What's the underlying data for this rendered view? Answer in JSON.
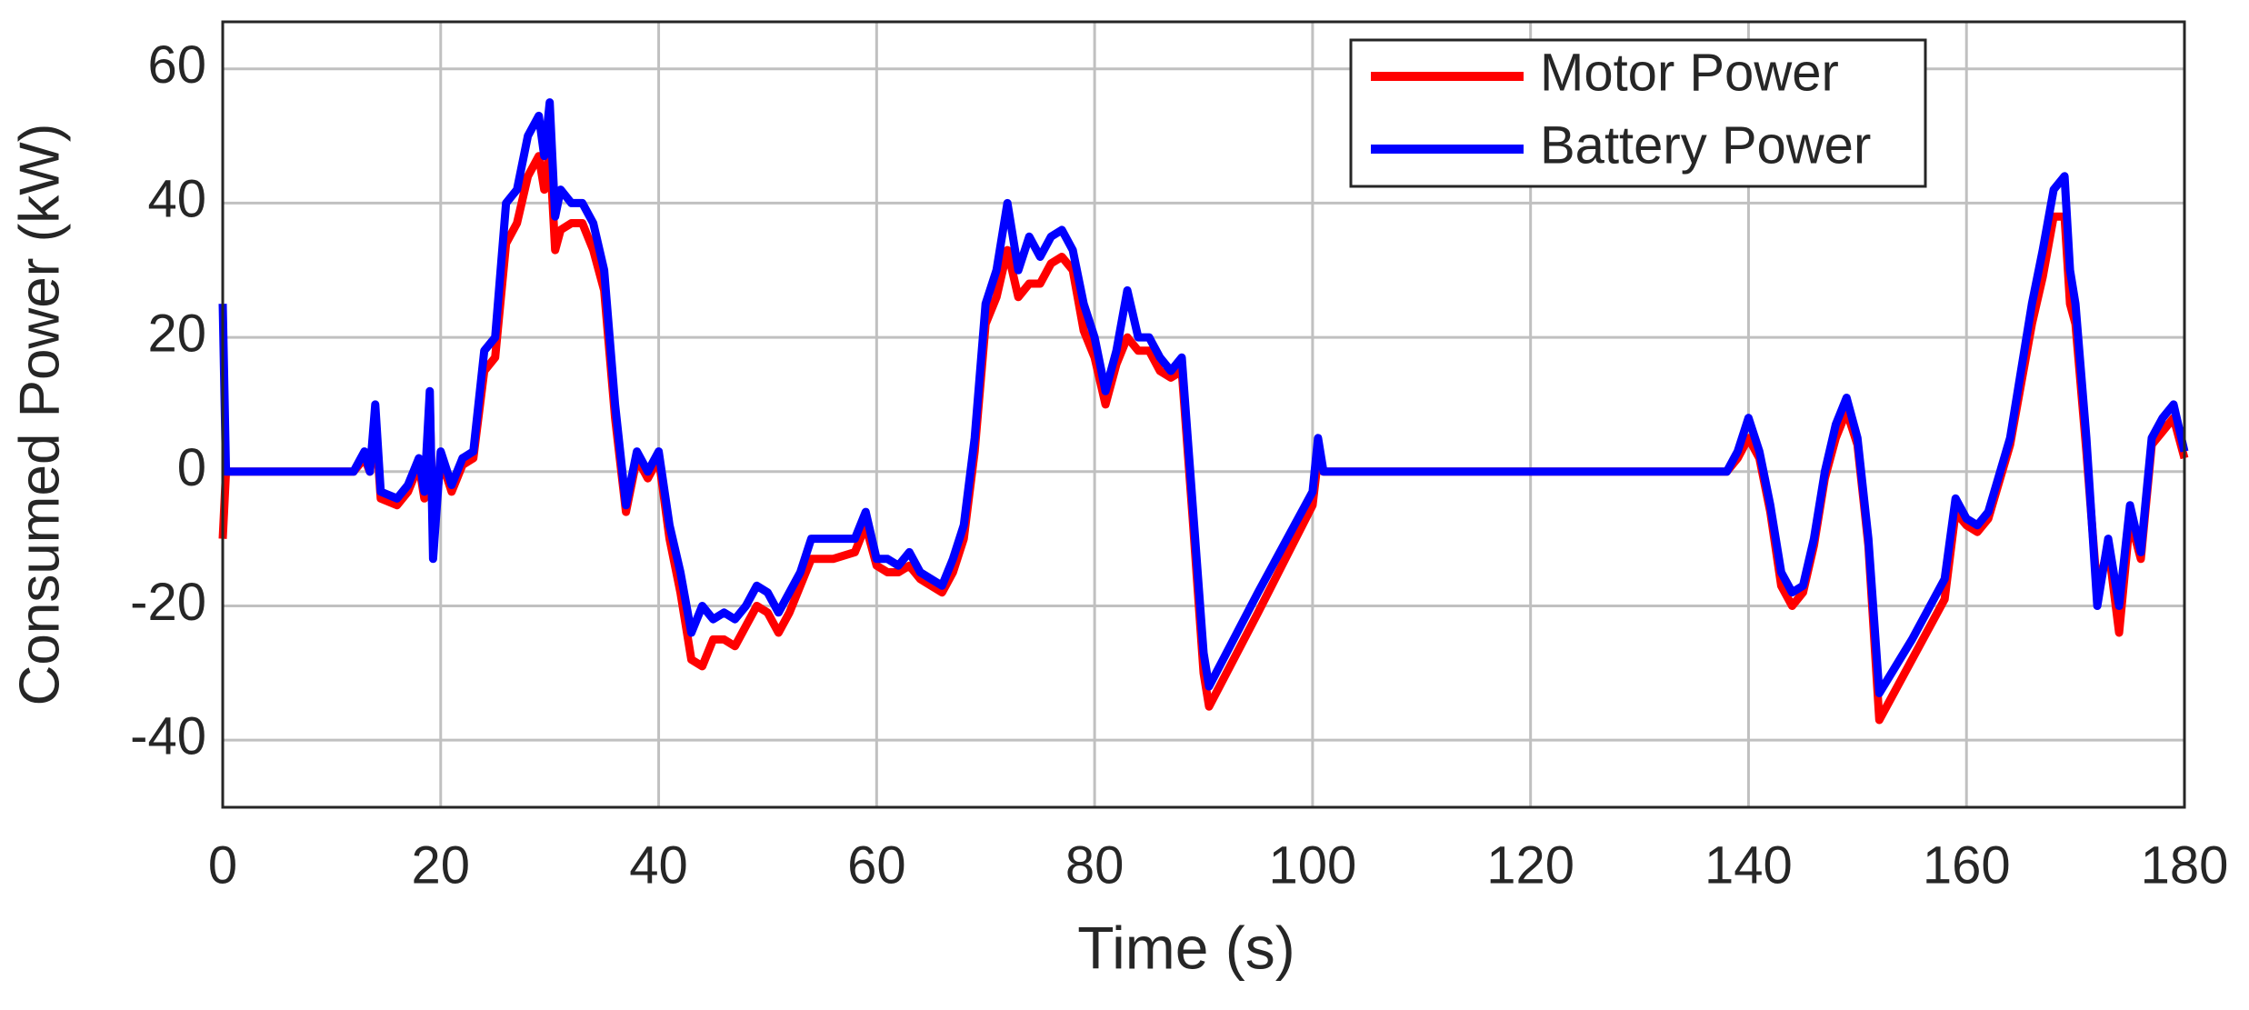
{
  "chart_data": {
    "type": "line",
    "xlabel": "Time (s)",
    "ylabel": "Consumed Power (kW)",
    "x": [
      0,
      0.3,
      12,
      13,
      13.5,
      14,
      14.5,
      16,
      17,
      18,
      18.5,
      19,
      19.3,
      20,
      21,
      22,
      23,
      24,
      25,
      26,
      27,
      28,
      29,
      29.5,
      30,
      30.5,
      31,
      32,
      33,
      34,
      35,
      36,
      37,
      38,
      39,
      40,
      41,
      42,
      43,
      44,
      45,
      46,
      47,
      48,
      49,
      50,
      51,
      52,
      53,
      54,
      56,
      58,
      59,
      60,
      61,
      62,
      63,
      64,
      66,
      67,
      68,
      69,
      70,
      71,
      72,
      73,
      74,
      75,
      76,
      77,
      78,
      79,
      80,
      81,
      82,
      83,
      84,
      85,
      86,
      87,
      88,
      89,
      90,
      90.5,
      95,
      100,
      100.5,
      101,
      138,
      139,
      140,
      141,
      142,
      143,
      144,
      145,
      146,
      147,
      148,
      149,
      150,
      151,
      152,
      155,
      158,
      159,
      160,
      161,
      162,
      164,
      166,
      167,
      168,
      169,
      169.5,
      170,
      171,
      172,
      173,
      174,
      175,
      176,
      177,
      178,
      179,
      180
    ],
    "series": [
      {
        "name": "Motor Power",
        "color": "#ff0000",
        "values": [
          -10,
          0,
          0,
          2,
          0,
          8,
          -4,
          -5,
          -3,
          1,
          -4,
          10,
          -10,
          2,
          -3,
          1,
          2,
          15,
          17,
          34,
          37,
          44,
          47,
          42,
          48,
          33,
          36,
          37,
          37,
          33,
          27,
          8,
          -6,
          2,
          -1,
          2,
          -10,
          -18,
          -28,
          -29,
          -25,
          -25,
          -26,
          -23,
          -20,
          -21,
          -24,
          -21,
          -17,
          -13,
          -13,
          -12,
          -8,
          -14,
          -15,
          -15,
          -14,
          -16,
          -18,
          -15,
          -10,
          3,
          22,
          26,
          33,
          26,
          28,
          28,
          31,
          32,
          30,
          21,
          17,
          10,
          16,
          20,
          18,
          18,
          15,
          14,
          15,
          -7,
          -30,
          -35,
          -21,
          -5,
          2,
          0,
          0,
          2,
          5,
          2,
          -6,
          -17,
          -20,
          -18,
          -11,
          -1,
          5,
          9,
          4,
          -11,
          -37,
          -28,
          -19,
          -6,
          -8,
          -9,
          -7,
          4,
          22,
          29,
          38,
          38,
          25,
          22,
          3,
          -18,
          -11,
          -24,
          -7,
          -13,
          4,
          6,
          8,
          2
        ]
      },
      {
        "name": "Battery Power",
        "color": "#0000ff",
        "values": [
          25,
          0,
          0,
          3,
          0,
          10,
          -3,
          -4,
          -2,
          2,
          -3,
          12,
          -13,
          3,
          -2,
          2,
          3,
          18,
          20,
          40,
          42,
          50,
          53,
          47,
          55,
          38,
          42,
          40,
          40,
          37,
          30,
          10,
          -5,
          3,
          0,
          3,
          -8,
          -15,
          -24,
          -20,
          -22,
          -21,
          -22,
          -20,
          -17,
          -18,
          -21,
          -18,
          -15,
          -10,
          -10,
          -10,
          -6,
          -13,
          -13,
          -14,
          -12,
          -15,
          -17,
          -13,
          -8,
          5,
          25,
          30,
          40,
          30,
          35,
          32,
          35,
          36,
          33,
          25,
          20,
          12,
          18,
          27,
          20,
          20,
          17,
          15,
          17,
          -5,
          -27,
          -32,
          -18,
          -3,
          5,
          0,
          0,
          3,
          8,
          3,
          -5,
          -15,
          -18,
          -17,
          -10,
          0,
          7,
          11,
          5,
          -10,
          -33,
          -25,
          -16,
          -4,
          -7,
          -8,
          -6,
          5,
          25,
          33,
          42,
          44,
          30,
          25,
          5,
          -20,
          -10,
          -20,
          -5,
          -12,
          5,
          8,
          10,
          3
        ]
      }
    ],
    "xlim": [
      0,
      180
    ],
    "xticks": [
      0,
      20,
      40,
      60,
      80,
      100,
      120,
      140,
      160,
      180
    ],
    "ylim": [
      -50,
      67
    ],
    "yticks": [
      -40,
      -20,
      0,
      20,
      40,
      60
    ],
    "grid": true,
    "legend": "upper right"
  }
}
